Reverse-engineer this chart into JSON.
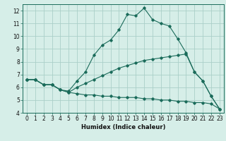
{
  "xlabel": "Humidex (Indice chaleur)",
  "ylabel": "",
  "bg_color": "#d6eee8",
  "grid_color": "#aacfc8",
  "line_color": "#1a6b5a",
  "xlim": [
    -0.5,
    23.5
  ],
  "ylim": [
    4,
    12.5
  ],
  "xticks": [
    0,
    1,
    2,
    3,
    4,
    5,
    6,
    7,
    8,
    9,
    10,
    11,
    12,
    13,
    14,
    15,
    16,
    17,
    18,
    19,
    20,
    21,
    22,
    23
  ],
  "yticks": [
    4,
    5,
    6,
    7,
    8,
    9,
    10,
    11,
    12
  ],
  "line1_x": [
    0,
    1,
    2,
    3,
    4,
    5,
    6,
    7,
    8,
    9,
    10,
    11,
    12,
    13,
    14,
    15,
    16,
    17,
    18,
    19,
    20,
    21,
    22,
    23
  ],
  "line1_y": [
    6.6,
    6.6,
    6.2,
    6.2,
    5.8,
    5.7,
    6.5,
    7.2,
    8.5,
    9.3,
    9.7,
    10.5,
    11.7,
    11.6,
    12.2,
    11.3,
    11.0,
    10.8,
    9.8,
    8.7,
    7.2,
    6.5,
    5.3,
    4.3
  ],
  "line2_x": [
    0,
    1,
    2,
    3,
    4,
    5,
    6,
    7,
    8,
    9,
    10,
    11,
    12,
    13,
    14,
    15,
    16,
    17,
    18,
    19,
    20,
    21,
    22,
    23
  ],
  "line2_y": [
    6.6,
    6.6,
    6.2,
    6.2,
    5.8,
    5.6,
    6.0,
    6.3,
    6.6,
    6.9,
    7.2,
    7.5,
    7.7,
    7.9,
    8.1,
    8.2,
    8.3,
    8.4,
    8.5,
    8.6,
    7.2,
    6.5,
    5.3,
    4.3
  ],
  "line3_x": [
    0,
    1,
    2,
    3,
    4,
    5,
    6,
    7,
    8,
    9,
    10,
    11,
    12,
    13,
    14,
    15,
    16,
    17,
    18,
    19,
    20,
    21,
    22,
    23
  ],
  "line3_y": [
    6.6,
    6.6,
    6.2,
    6.2,
    5.8,
    5.6,
    5.5,
    5.4,
    5.4,
    5.3,
    5.3,
    5.2,
    5.2,
    5.2,
    5.1,
    5.1,
    5.0,
    5.0,
    4.9,
    4.9,
    4.8,
    4.8,
    4.7,
    4.3
  ],
  "tick_fontsize": 5.5,
  "xlabel_fontsize": 6.0
}
